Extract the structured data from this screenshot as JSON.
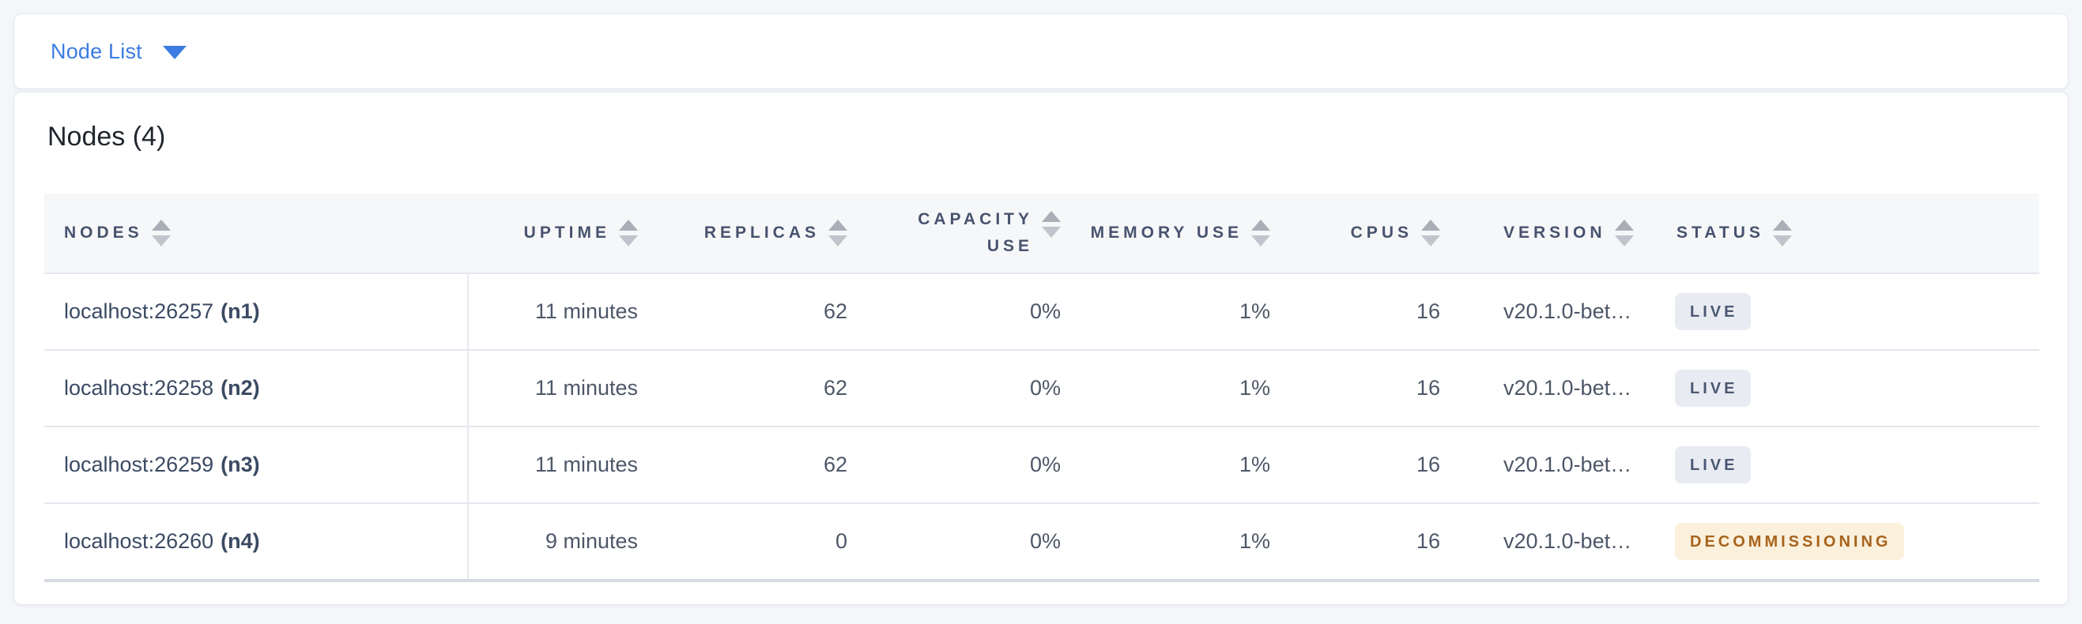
{
  "nav": {
    "dropdown_label": "Node List"
  },
  "section": {
    "title": "Nodes (4)"
  },
  "table": {
    "columns": [
      {
        "key": "nodes",
        "label": "NODES"
      },
      {
        "key": "uptime",
        "label": "UPTIME"
      },
      {
        "key": "replicas",
        "label": "REPLICAS"
      },
      {
        "key": "capacity_use",
        "label": "CAPACITY USE"
      },
      {
        "key": "memory_use",
        "label": "MEMORY USE"
      },
      {
        "key": "cpus",
        "label": "CPUS"
      },
      {
        "key": "version",
        "label": "VERSION"
      },
      {
        "key": "status",
        "label": "STATUS"
      }
    ],
    "rows": [
      {
        "node": "localhost:26257",
        "node_id": "(n1)",
        "uptime": "11 minutes",
        "replicas": "62",
        "capacity_use": "0%",
        "memory_use": "1%",
        "cpus": "16",
        "version": "v20.1.0-bet…",
        "status": "LIVE"
      },
      {
        "node": "localhost:26258",
        "node_id": "(n2)",
        "uptime": "11 minutes",
        "replicas": "62",
        "capacity_use": "0%",
        "memory_use": "1%",
        "cpus": "16",
        "version": "v20.1.0-bet…",
        "status": "LIVE"
      },
      {
        "node": "localhost:26259",
        "node_id": "(n3)",
        "uptime": "11 minutes",
        "replicas": "62",
        "capacity_use": "0%",
        "memory_use": "1%",
        "cpus": "16",
        "version": "v20.1.0-bet…",
        "status": "LIVE"
      },
      {
        "node": "localhost:26260",
        "node_id": "(n4)",
        "uptime": "9 minutes",
        "replicas": "0",
        "capacity_use": "0%",
        "memory_use": "1%",
        "cpus": "16",
        "version": "v20.1.0-bet…",
        "status": "DECOMMISSIONING"
      }
    ]
  },
  "icons": {
    "dropdown_caret": "chevron-down",
    "column_sort": "sort-arrows"
  },
  "colors": {
    "accent_blue": "#3b7ce2",
    "page_background": "#f4f6fa",
    "header_background": "#f6f7f9",
    "header_text": "#47536e",
    "status_live_bg": "#e8ebf2",
    "status_live_text": "#4a5872",
    "status_decommissioning_bg": "#fbf0dc",
    "status_decommissioning_text": "#a8631c"
  }
}
